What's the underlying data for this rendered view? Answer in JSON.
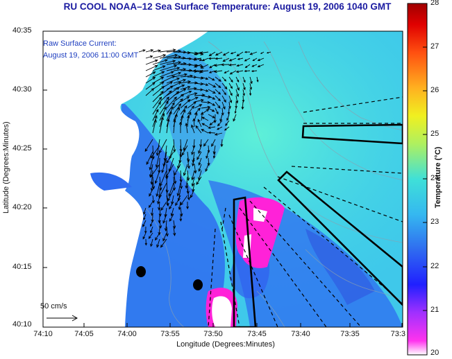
{
  "title": "RU COOL  NOAA–12  Sea Surface Temperature:  August 19, 2006 1040 GMT",
  "legend": {
    "line1": "Raw Surface Current:",
    "line2": "August 19, 2006 11:00 GMT"
  },
  "axes": {
    "x_label": "Longitude (Degrees:Minutes)",
    "y_label": "Latitude (Degrees:Minutes)",
    "x_ticks": [
      "74:10",
      "74:05",
      "74:00",
      "73:55",
      "73:50",
      "73:45",
      "73:40",
      "73:35",
      "73:3"
    ],
    "y_ticks": [
      "40:35",
      "40:30",
      "40:25",
      "40:20",
      "40:15",
      "40:10"
    ]
  },
  "scale": {
    "label": "50 cm/s"
  },
  "colorbar": {
    "label": "Temperature (°C)",
    "ticks": [
      "28",
      "27",
      "26",
      "25",
      "24",
      "23",
      "22",
      "21",
      "20"
    ],
    "min": 20,
    "max": 28
  },
  "colors": {
    "title": "#1a1aa0",
    "legend_text": "#2040c0",
    "land": "#ffffff",
    "warm_water": "#3fd6e6",
    "cool_water": "#2f6cf0",
    "coldest": "#ff22d8"
  },
  "features": {
    "land_mass": "new-jersey-coast",
    "radar_stations": 2,
    "current_vector_field": "surface-current-arrows"
  }
}
